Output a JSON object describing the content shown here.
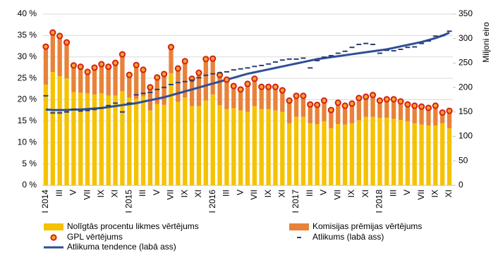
{
  "chart_data": {
    "type": "bar",
    "categories": [
      "I 2014",
      null,
      "III",
      null,
      "V",
      null,
      "VII",
      null,
      "IX",
      null,
      "XI",
      null,
      "I 2015",
      null,
      "III",
      null,
      "V",
      null,
      "VII",
      null,
      "IX",
      null,
      "XI",
      null,
      "I 2016",
      null,
      "III",
      null,
      "V",
      null,
      "VII",
      null,
      "IX",
      null,
      "XI",
      null,
      "I 2017",
      null,
      "III",
      null,
      "V",
      null,
      "VII",
      null,
      "IX",
      null,
      "XI",
      null,
      "I 2018",
      null,
      "III",
      null,
      "V",
      null,
      "VII",
      null,
      "IX",
      null,
      "XI"
    ],
    "series": [
      {
        "name": "Nolīgtās procentu likmes vērtējums",
        "type": "bar",
        "color": "#f5c200",
        "values": [
          23.5,
          26.5,
          25.5,
          25,
          21.8,
          21.6,
          21.5,
          21.2,
          21.5,
          21,
          21,
          22,
          20.5,
          20.2,
          20.8,
          17.5,
          19,
          18.8,
          26.2,
          19.5,
          20.5,
          18.5,
          18.5,
          19.8,
          21.2,
          18.7,
          17.8,
          18,
          17.5,
          17.2,
          18.5,
          17.8,
          17.8,
          17.5,
          17.2,
          14.5,
          16,
          16,
          14.5,
          14.3,
          15,
          13.3,
          14.3,
          14.2,
          14.5,
          15.2,
          16,
          16,
          15.8,
          15.8,
          15.5,
          15.3,
          15,
          14.5,
          14.2,
          14,
          14,
          14.5,
          13.3
        ]
      },
      {
        "name": "Komisijas prēmijas vērtējums",
        "type": "bar",
        "color": "#e8823a",
        "values": [
          8.9,
          9.2,
          9.4,
          8.4,
          6.2,
          6.1,
          5,
          6.3,
          6.8,
          6.7,
          7.6,
          8.6,
          5.3,
          7.9,
          6.2,
          5.4,
          6.2,
          7.2,
          6.1,
          7.8,
          8.5,
          6.4,
          7.8,
          9.7,
          8.4,
          7.1,
          6.9,
          5.2,
          4.9,
          6.5,
          6.4,
          5.2,
          5.2,
          5.5,
          5,
          5.3,
          4.9,
          4.9,
          4.4,
          4.5,
          4.8,
          4.3,
          5,
          4.4,
          4.6,
          5.2,
          4.7,
          5.1,
          4,
          4.3,
          4.6,
          4.3,
          3.9,
          4.1,
          4.2,
          4.1,
          4.6,
          2.5,
          4.1
        ]
      },
      {
        "name": "GPL vērtējums",
        "type": "scatter",
        "marker": "circle",
        "color": "#d4201c",
        "values": [
          32.4,
          35.7,
          34.9,
          33.4,
          28,
          27.7,
          26.5,
          27.5,
          28.3,
          27.7,
          28.6,
          30.6,
          25.8,
          28.1,
          27,
          22.9,
          25.2,
          26,
          32.3,
          27.3,
          29,
          24.9,
          26.3,
          29.5,
          29.6,
          25.8,
          24.7,
          23.2,
          22.4,
          23.7,
          24.9,
          23,
          23,
          23,
          22.2,
          19.8,
          20.9,
          20.9,
          18.9,
          18.8,
          19.8,
          17.6,
          19.3,
          18.6,
          19.1,
          20.4,
          20.7,
          21.1,
          19.8,
          20.1,
          20.1,
          19.6,
          18.9,
          18.6,
          18.4,
          18.1,
          18.6,
          17,
          17.4
        ]
      },
      {
        "name": "Atlikums (labā ass)",
        "type": "scatter",
        "marker": "dash",
        "axis": "y2",
        "color": "#2a3f73",
        "values": [
          183,
          148,
          148,
          150,
          155,
          152,
          153,
          155,
          158,
          163,
          168,
          150,
          168,
          185,
          188,
          190,
          196,
          200,
          206,
          210,
          212,
          215,
          220,
          225,
          228,
          230,
          232,
          236,
          238,
          240,
          243,
          245,
          248,
          252,
          256,
          258,
          258,
          260,
          240,
          255,
          262,
          265,
          270,
          274,
          282,
          288,
          290,
          288,
          270,
          276,
          275,
          278,
          282,
          283,
          290,
          295,
          305,
          306,
          315
        ]
      },
      {
        "name": "Atlikuma tendence (labā ass)",
        "type": "line",
        "axis": "y2",
        "color": "#2f4f95",
        "values": [
          155,
          154,
          154,
          154,
          155,
          155,
          156,
          157,
          158,
          160,
          162,
          164,
          166,
          168,
          171,
          174,
          177,
          180,
          184,
          188,
          192,
          196,
          200,
          204,
          208,
          212,
          216,
          220,
          224,
          228,
          231,
          234,
          237,
          240,
          243,
          246,
          249,
          252,
          255,
          258,
          260,
          262,
          264,
          266,
          268,
          270,
          272,
          274,
          276,
          278,
          281,
          284,
          287,
          290,
          293,
          297,
          301,
          306,
          312
        ]
      }
    ],
    "ylim": [
      0,
      40
    ],
    "yticks": [
      {
        "value": 0,
        "label": "0 %"
      },
      {
        "value": 5,
        "label": "5 %"
      },
      {
        "value": 10,
        "label": "10 %"
      },
      {
        "value": 15,
        "label": "15 %"
      },
      {
        "value": 20,
        "label": "20 %"
      },
      {
        "value": 25,
        "label": "25 %"
      },
      {
        "value": 30,
        "label": "30 %"
      },
      {
        "value": 35,
        "label": "35 %"
      },
      {
        "value": 40,
        "label": "40 %"
      }
    ],
    "y2lim": [
      0,
      350
    ],
    "y2ticks": [
      0,
      50,
      100,
      150,
      200,
      250,
      300,
      350
    ],
    "y2label": "Miljoni eiro",
    "grid": true
  }
}
